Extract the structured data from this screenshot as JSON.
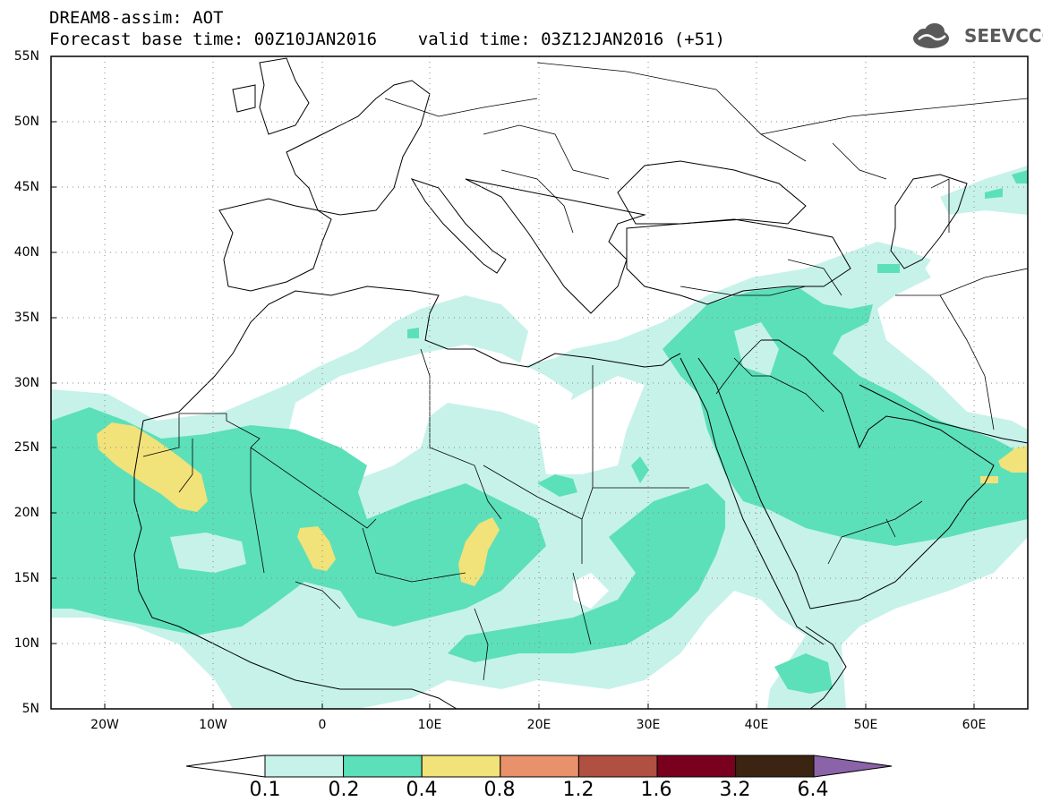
{
  "header": {
    "title": "DREAM8-assim: AOT",
    "subtitle": "Forecast base time: 00Z10JAN2016    valid time: 03Z12JAN2016 (+51)"
  },
  "logo": {
    "text": "SEEVCCC"
  },
  "map": {
    "lat_labels": [
      "55N",
      "50N",
      "45N",
      "40N",
      "35N",
      "30N",
      "25N",
      "20N",
      "15N",
      "10N",
      "5N"
    ],
    "lon_labels": [
      "20W",
      "10W",
      "0",
      "10E",
      "20E",
      "30E",
      "40E",
      "50E",
      "60E"
    ],
    "lat_range": [
      5,
      55
    ],
    "lon_range": [
      -25,
      65
    ],
    "grid": "dotted"
  },
  "legend": {
    "labels": [
      "0.1",
      "0.2",
      "0.4",
      "0.8",
      "1.2",
      "1.6",
      "3.2",
      "6.4"
    ],
    "colors": [
      "#c6f2ea",
      "#5ce0b9",
      "#f2e27a",
      "#e8916a",
      "#b05040",
      "#7a0020",
      "#3b2412",
      "#8a63a8"
    ]
  }
}
